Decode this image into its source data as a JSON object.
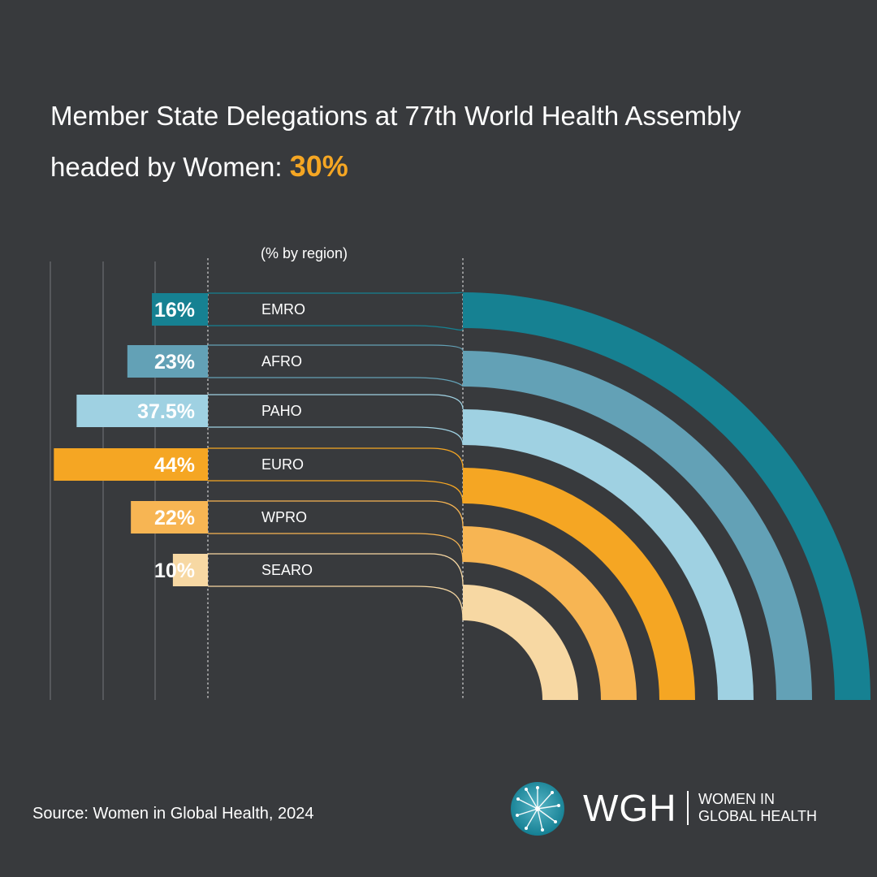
{
  "header": {
    "title_line1": "Member State Delegations at 77th World Health Assembly",
    "title_line2": "headed by Women: ",
    "title_highlight": "30%"
  },
  "chart_data": {
    "type": "bar",
    "subtitle": "(% by region)",
    "unit": "%",
    "categories": [
      "EMRO",
      "AFRO",
      "PAHO",
      "EURO",
      "WPRO",
      "SEARO"
    ],
    "values": [
      16,
      23,
      37.5,
      44,
      22,
      10
    ],
    "value_labels": [
      "16%",
      "23%",
      "37.5%",
      "44%",
      "22%",
      "10%"
    ],
    "colors": [
      "#168192",
      "#63a1b6",
      "#9fd1e2",
      "#f5a623",
      "#f7b553",
      "#f7d8a3"
    ],
    "label_colors": [
      "#ffffff",
      "#ffffff",
      "#ffffff",
      "#ffffff",
      "#ffffff",
      "#ffffff"
    ],
    "xlim": [
      0,
      45
    ],
    "grid": true
  },
  "footer": {
    "source": "Source: Women in Global Health, 2024"
  },
  "logo": {
    "abbr": "WGH",
    "name_line1": "WOMEN IN",
    "name_line2": "GLOBAL HEALTH",
    "colors": {
      "globe": "#147f93",
      "globe_light": "#58b6c6"
    }
  }
}
